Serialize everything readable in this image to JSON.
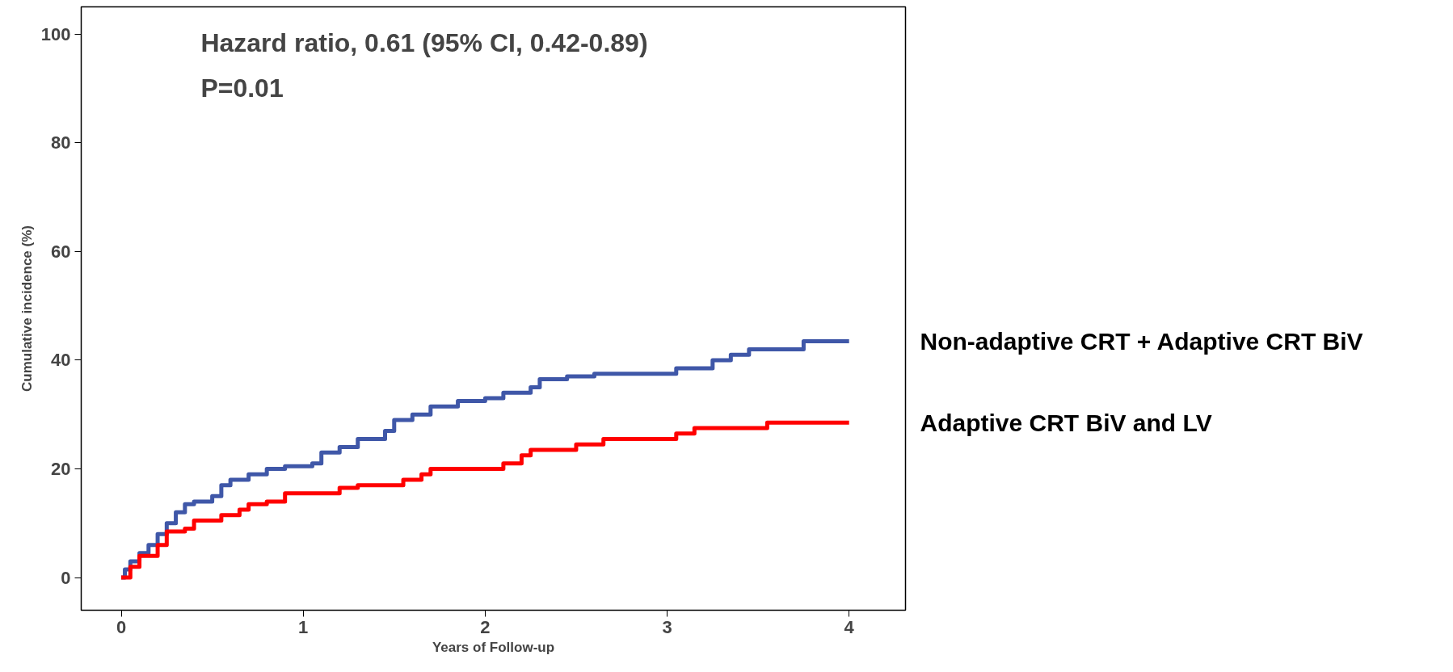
{
  "chart_data": {
    "type": "step",
    "xlabel": "Years of Follow-up",
    "ylabel": "Cumulative incidence (%)",
    "annotations": [
      "Hazard ratio, 0.61 (95% CI, 0.42-0.89)",
      "P=0.01"
    ],
    "xlim": [
      -0.22,
      4.31
    ],
    "ylim": [
      -6,
      105
    ],
    "xticks": [
      0,
      1,
      2,
      3,
      4
    ],
    "yticks": [
      0,
      20,
      40,
      60,
      80,
      100
    ],
    "grid": false,
    "line_style": "solid",
    "series": [
      {
        "name": "Non-adaptive CRT + Adaptive CRT BiV",
        "color": "#3f57a8",
        "x": [
          0,
          0.02,
          0.05,
          0.1,
          0.15,
          0.2,
          0.25,
          0.3,
          0.35,
          0.4,
          0.5,
          0.55,
          0.6,
          0.7,
          0.8,
          0.9,
          1.05,
          1.1,
          1.2,
          1.3,
          1.45,
          1.5,
          1.6,
          1.7,
          1.85,
          2,
          2.1,
          2.25,
          2.3,
          2.45,
          2.6,
          3.05,
          3.25,
          3.35,
          3.45,
          3.75,
          4
        ],
        "values": [
          0,
          1.5,
          3,
          4.5,
          6,
          8,
          10,
          12,
          13.5,
          14,
          15,
          17,
          18,
          19,
          20,
          20.5,
          21,
          23,
          24,
          25.5,
          27,
          29,
          30,
          31.5,
          32.5,
          33,
          34,
          35,
          36.5,
          37,
          37.5,
          38.5,
          40,
          41,
          42,
          43.5,
          43.5
        ]
      },
      {
        "name": "Adaptive CRT BiV and LV",
        "color": "#ff0000",
        "x": [
          0,
          0.05,
          0.1,
          0.2,
          0.25,
          0.35,
          0.4,
          0.55,
          0.65,
          0.7,
          0.8,
          0.9,
          1.2,
          1.3,
          1.55,
          1.65,
          1.7,
          2.1,
          2.2,
          2.25,
          2.5,
          2.65,
          3.05,
          3.15,
          3.55,
          4
        ],
        "values": [
          0,
          2,
          4,
          6,
          8.5,
          9,
          10.5,
          11.5,
          12.5,
          13.5,
          14,
          15.5,
          16.5,
          17,
          18,
          19,
          20,
          21,
          22.5,
          23.5,
          24.5,
          25.5,
          26.5,
          27.5,
          28.5,
          28.5
        ]
      }
    ]
  }
}
